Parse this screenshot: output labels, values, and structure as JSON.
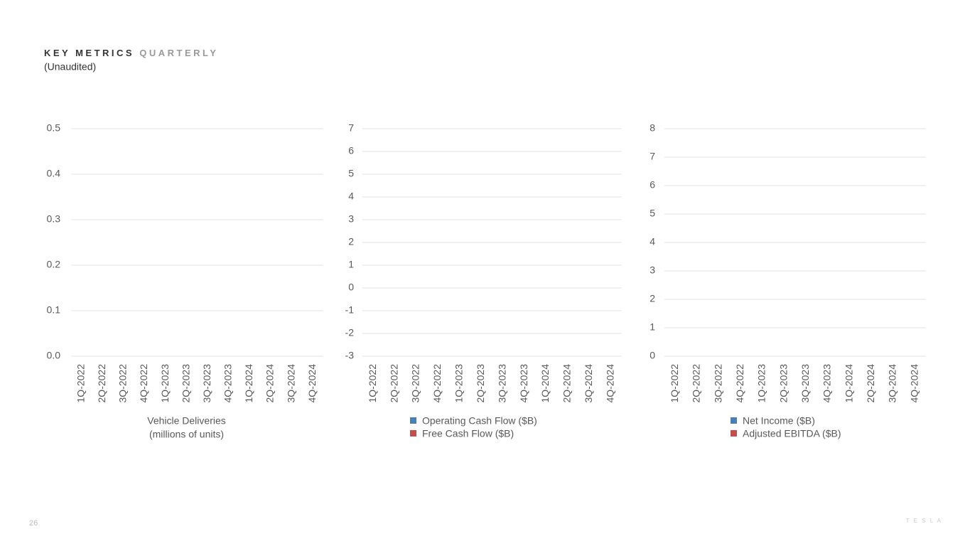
{
  "header": {
    "title_bold": "KEY METRICS",
    "title_light": "QUARTERLY",
    "subtitle": "(Unaudited)"
  },
  "page_number": "26",
  "logo": "T E S L A",
  "chart_data": [
    {
      "type": "bar",
      "categories": [
        "1Q-2022",
        "2Q-2022",
        "3Q-2022",
        "4Q-2022",
        "1Q-2023",
        "2Q-2023",
        "3Q-2023",
        "4Q-2023",
        "1Q-2024",
        "2Q-2024",
        "3Q-2024",
        "4Q-2024"
      ],
      "x_label": [
        "Vehicle Deliveries",
        "(millions of units)"
      ],
      "series": [
        {
          "color": "#4a7fb5",
          "values": [
            null,
            null,
            null,
            null,
            null,
            null,
            null,
            null,
            null,
            null,
            null,
            null
          ]
        }
      ],
      "ylim": [
        0,
        0.5
      ],
      "yticks": [
        {
          "value": 0,
          "label": "0.0"
        },
        0.1,
        0.2,
        0.3,
        0.4,
        0.5
      ],
      "grid": true
    },
    {
      "type": "bar",
      "categories": [
        "1Q-2022",
        "2Q-2022",
        "3Q-2022",
        "4Q-2022",
        "1Q-2023",
        "2Q-2023",
        "3Q-2023",
        "4Q-2023",
        "1Q-2024",
        "2Q-2024",
        "3Q-2024",
        "4Q-2024"
      ],
      "series": [
        {
          "name": "Operating Cash Flow ($B)",
          "color": "#4a7fb5",
          "values": [
            null,
            null,
            null,
            null,
            null,
            null,
            null,
            null,
            null,
            null,
            null,
            null
          ]
        },
        {
          "name": "Free Cash Flow ($B)",
          "color": "#c0504d",
          "values": [
            null,
            null,
            null,
            null,
            null,
            null,
            null,
            null,
            null,
            null,
            null,
            null
          ]
        }
      ],
      "ylim": [
        -3,
        7
      ],
      "yticks": [
        -3,
        -2,
        -1,
        0,
        1,
        2,
        3,
        4,
        5,
        6,
        7
      ],
      "grid": true
    },
    {
      "type": "bar",
      "categories": [
        "1Q-2022",
        "2Q-2022",
        "3Q-2022",
        "4Q-2022",
        "1Q-2023",
        "2Q-2023",
        "3Q-2023",
        "4Q-2023",
        "1Q-2024",
        "2Q-2024",
        "3Q-2024",
        "4Q-2024"
      ],
      "series": [
        {
          "name": "Net Income ($B)",
          "color": "#4a7fb5",
          "values": [
            null,
            null,
            null,
            null,
            null,
            null,
            null,
            null,
            null,
            null,
            null,
            null
          ]
        },
        {
          "name": "Adjusted EBITDA ($B)",
          "color": "#c0504d",
          "values": [
            null,
            null,
            null,
            null,
            null,
            null,
            null,
            null,
            null,
            null,
            null,
            null
          ]
        }
      ],
      "ylim": [
        0,
        8
      ],
      "yticks": [
        0,
        1,
        2,
        3,
        4,
        5,
        6,
        7,
        8
      ],
      "grid": true
    }
  ]
}
